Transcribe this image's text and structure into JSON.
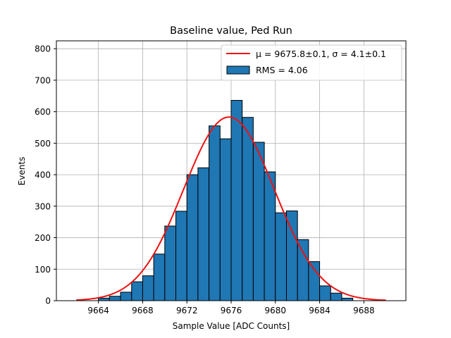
{
  "chart_data": {
    "type": "bar",
    "title": "Baseline value, Ped Run",
    "xlabel": "Sample Value [ADC Counts]",
    "ylabel": "Events",
    "xlim": [
      9660.2,
      9691.8
    ],
    "ylim": [
      0,
      825
    ],
    "xticks": [
      9664,
      9668,
      9672,
      9676,
      9680,
      9684,
      9688
    ],
    "yticks": [
      0,
      100,
      200,
      300,
      400,
      500,
      600,
      700,
      800
    ],
    "grid": true,
    "legend_position": "top-right",
    "bar_color": "#1f77b4",
    "fit_color": "#ee1111",
    "bin_width": 1,
    "histogram": {
      "name": "RMS = 4.06",
      "bins": [
        {
          "x_left": 9664.0,
          "value": 8
        },
        {
          "x_left": 9665.0,
          "value": 14
        },
        {
          "x_left": 9666.0,
          "value": 27
        },
        {
          "x_left": 9667.0,
          "value": 60
        },
        {
          "x_left": 9668.0,
          "value": 79
        },
        {
          "x_left": 9669.0,
          "value": 148
        },
        {
          "x_left": 9670.0,
          "value": 237
        },
        {
          "x_left": 9671.0,
          "value": 284
        },
        {
          "x_left": 9672.0,
          "value": 400
        },
        {
          "x_left": 9673.0,
          "value": 422
        },
        {
          "x_left": 9674.0,
          "value": 555
        },
        {
          "x_left": 9675.0,
          "value": 514
        },
        {
          "x_left": 9676.0,
          "value": 636
        },
        {
          "x_left": 9677.0,
          "value": 582
        },
        {
          "x_left": 9678.0,
          "value": 503
        },
        {
          "x_left": 9679.0,
          "value": 409
        },
        {
          "x_left": 9680.0,
          "value": 279
        },
        {
          "x_left": 9681.0,
          "value": 285
        },
        {
          "x_left": 9682.0,
          "value": 194
        },
        {
          "x_left": 9683.0,
          "value": 124
        },
        {
          "x_left": 9684.0,
          "value": 47
        },
        {
          "x_left": 9685.0,
          "value": 24
        },
        {
          "x_left": 9686.0,
          "value": 8
        }
      ]
    },
    "fit": {
      "name": "μ = 9675.8±0.1, σ = 4.1±0.1",
      "mu": 9675.8,
      "sigma": 4.1,
      "amplitude": 583,
      "x_range": [
        9662,
        9690
      ]
    }
  }
}
